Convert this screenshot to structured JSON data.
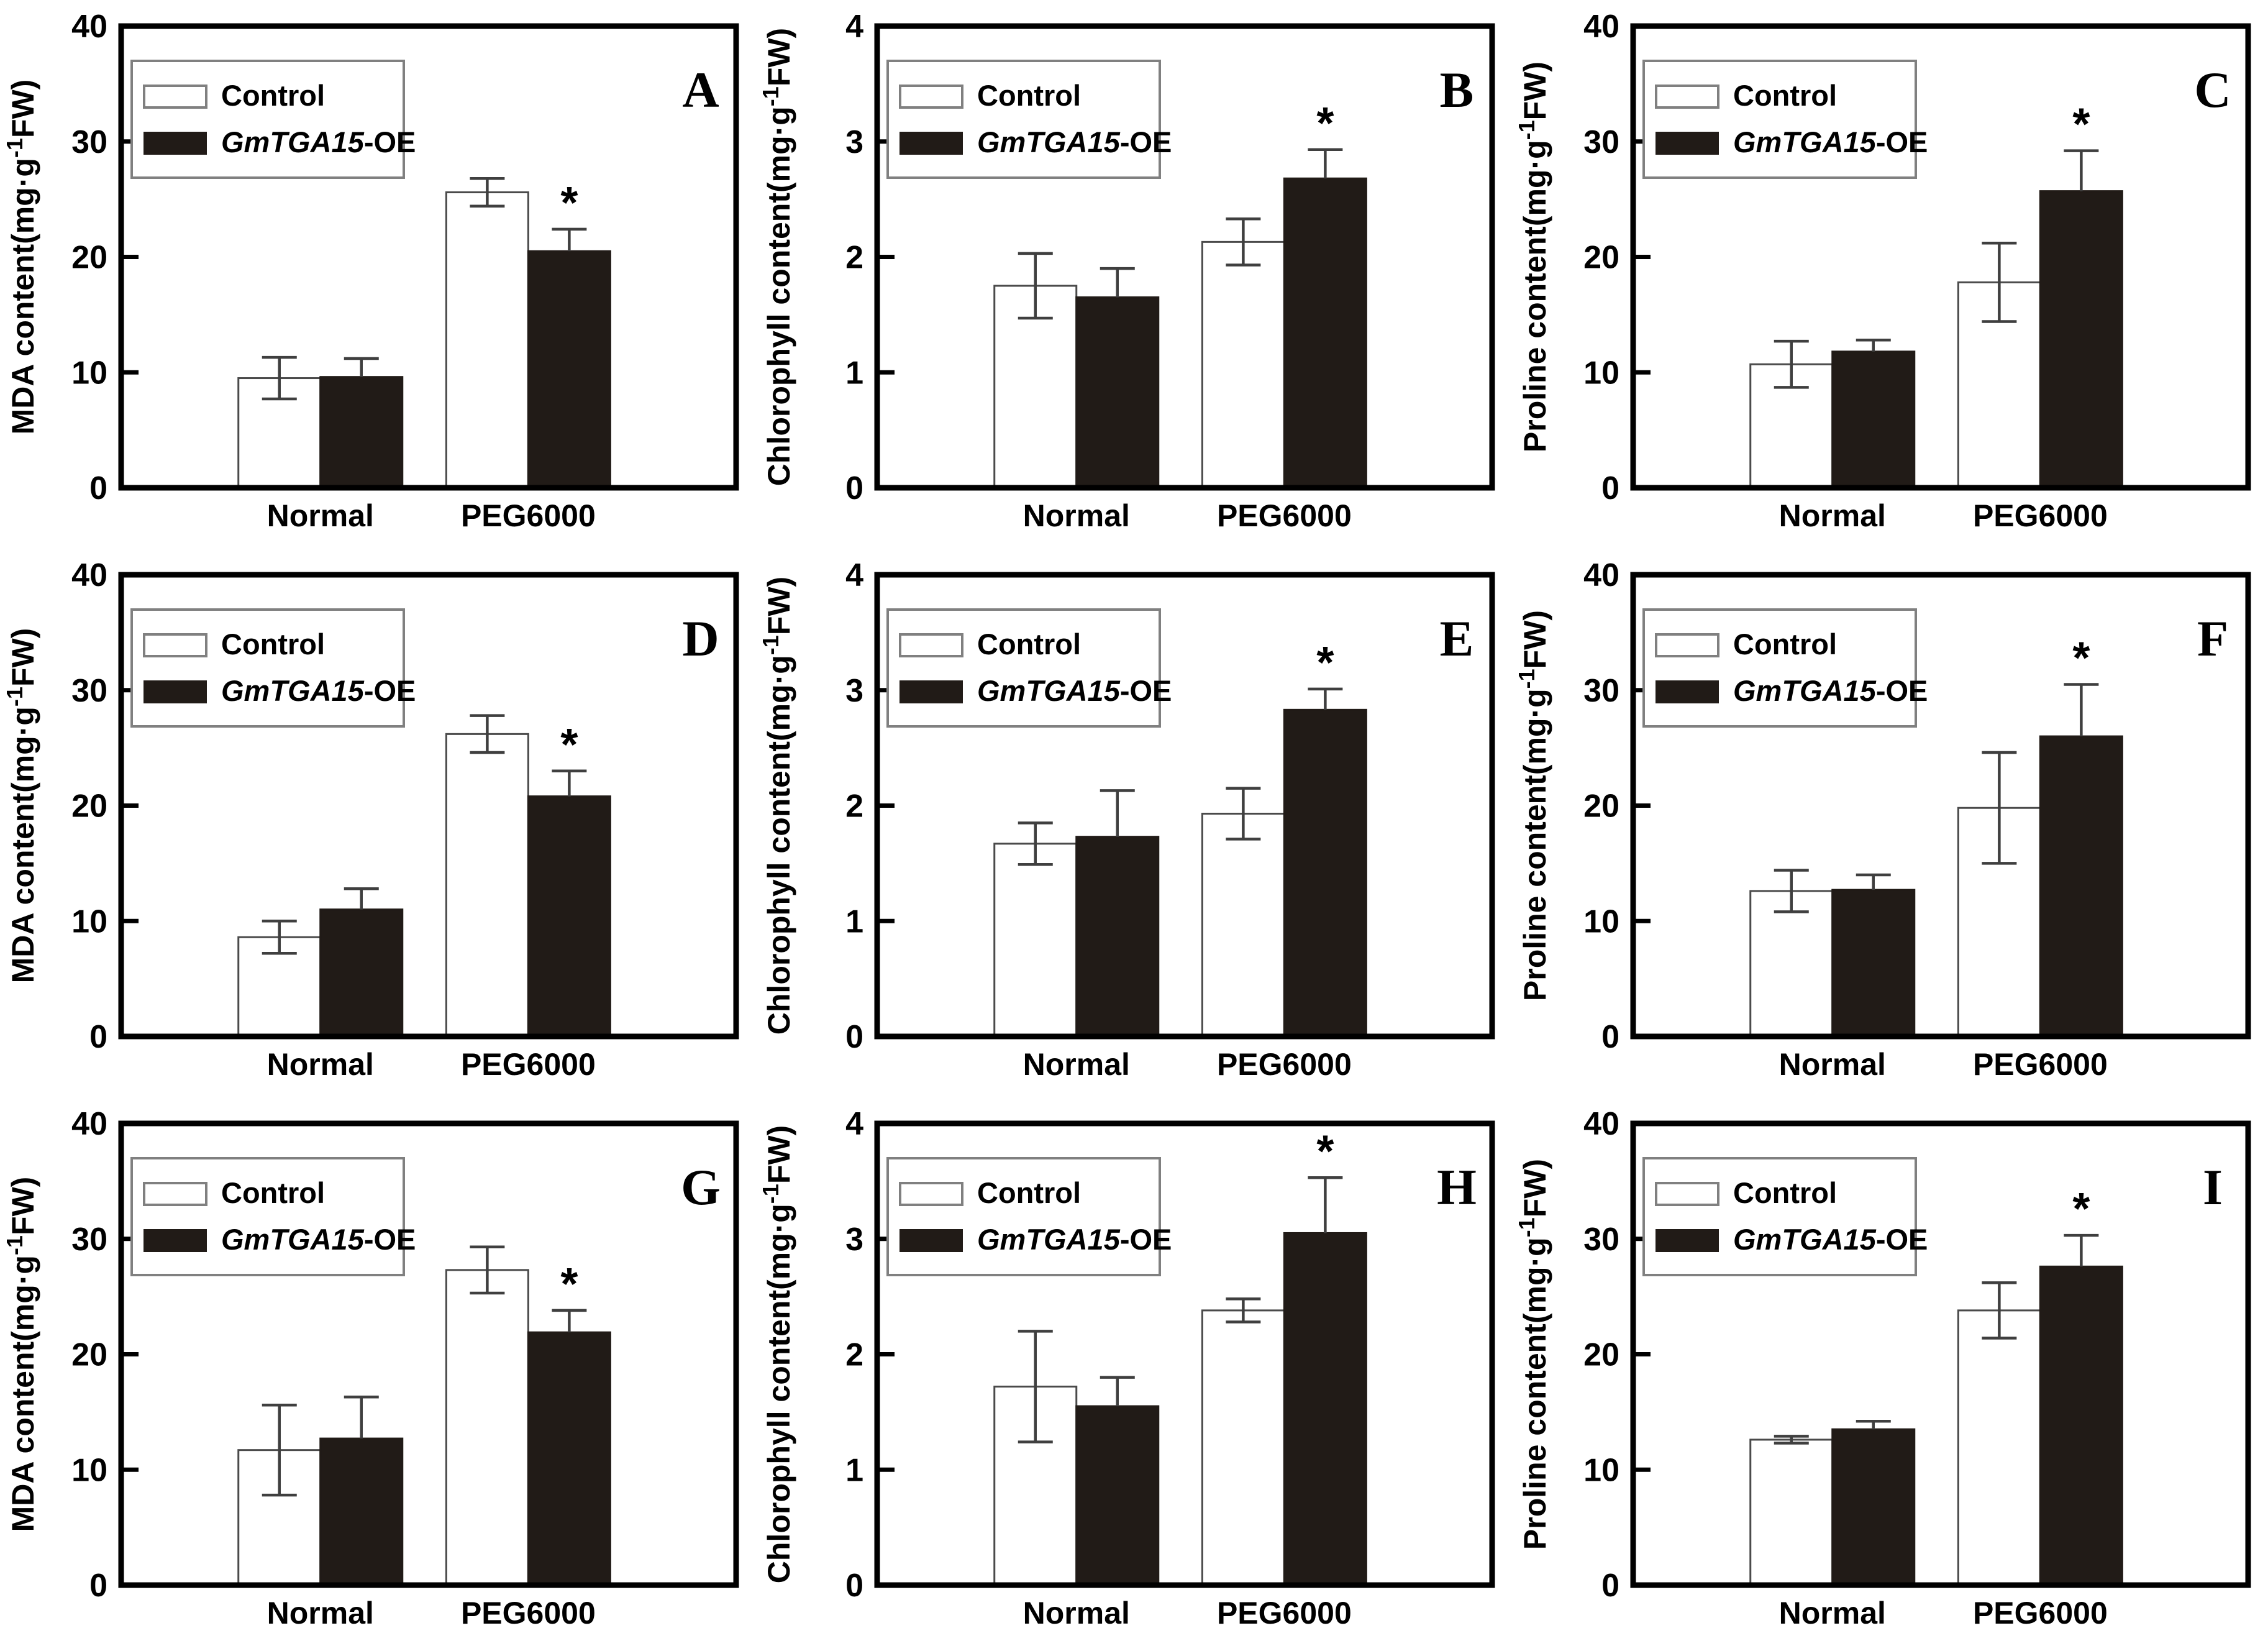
{
  "page": {
    "background": "#ffffff"
  },
  "colors": {
    "frame": "#000000",
    "tick": "#000000",
    "text": "#000000",
    "control_fill": "#ffffff",
    "control_stroke": "#4a4a4a",
    "oe_fill": "#211b17",
    "error_bar": "#3f3f3f",
    "legend_border": "#808080",
    "legend_fill": "#ffffff"
  },
  "legend": {
    "control_label": "Control",
    "oe_label_italic": "GmTGA15",
    "oe_label_suffix": "-OE"
  },
  "significance_marker": "*",
  "chart_data": [
    {
      "type": "bar",
      "panel_label": "A",
      "ylabel": "MDA content(mg·g⁻¹FW)",
      "ylabel_parts": {
        "prefix": "MDA content(mg·g",
        "sup": "-1",
        "suffix": "FW)"
      },
      "ylim": [
        0,
        40
      ],
      "yticks": [
        0,
        10,
        20,
        30,
        40
      ],
      "categories": [
        "Normal",
        "PEG6000"
      ],
      "series": [
        {
          "name": "Control",
          "values": [
            9.5,
            25.6
          ],
          "errors": [
            1.8,
            1.2
          ]
        },
        {
          "name": "GmTGA15-OE",
          "values": [
            9.6,
            20.5
          ],
          "errors": [
            1.6,
            1.9
          ]
        }
      ],
      "significance": [
        {
          "category": "PEG6000",
          "series": "GmTGA15-OE",
          "marker": "*"
        }
      ]
    },
    {
      "type": "bar",
      "panel_label": "B",
      "ylabel": "Chlorophyll content(mg·g⁻¹FW)",
      "ylabel_parts": {
        "prefix": "Chlorophyll content(mg·g",
        "sup": "-1",
        "suffix": "FW)"
      },
      "ylim": [
        0,
        4
      ],
      "yticks": [
        0,
        1,
        2,
        3,
        4
      ],
      "categories": [
        "Normal",
        "PEG6000"
      ],
      "series": [
        {
          "name": "Control",
          "values": [
            1.75,
            2.13
          ],
          "errors": [
            0.28,
            0.2
          ]
        },
        {
          "name": "GmTGA15-OE",
          "values": [
            1.65,
            2.68
          ],
          "errors": [
            0.25,
            0.25
          ]
        }
      ],
      "significance": [
        {
          "category": "PEG6000",
          "series": "GmTGA15-OE",
          "marker": "*"
        }
      ]
    },
    {
      "type": "bar",
      "panel_label": "C",
      "ylabel": "Proline content(mg·g⁻¹FW)",
      "ylabel_parts": {
        "prefix": "Proline content(mg·g",
        "sup": "-1",
        "suffix": "FW)"
      },
      "ylim": [
        0,
        40
      ],
      "yticks": [
        0,
        10,
        20,
        30,
        40
      ],
      "categories": [
        "Normal",
        "PEG6000"
      ],
      "series": [
        {
          "name": "Control",
          "values": [
            10.7,
            17.8
          ],
          "errors": [
            2.0,
            3.4
          ]
        },
        {
          "name": "GmTGA15-OE",
          "values": [
            11.8,
            25.7
          ],
          "errors": [
            1.0,
            3.5
          ]
        }
      ],
      "significance": [
        {
          "category": "PEG6000",
          "series": "GmTGA15-OE",
          "marker": "*"
        }
      ]
    },
    {
      "type": "bar",
      "panel_label": "D",
      "ylabel": "MDA content(mg·g⁻¹FW)",
      "ylabel_parts": {
        "prefix": "MDA content(mg·g",
        "sup": "-1",
        "suffix": "FW)"
      },
      "ylim": [
        0,
        40
      ],
      "yticks": [
        0,
        10,
        20,
        30,
        40
      ],
      "categories": [
        "Normal",
        "PEG6000"
      ],
      "series": [
        {
          "name": "Control",
          "values": [
            8.6,
            26.2
          ],
          "errors": [
            1.4,
            1.6
          ]
        },
        {
          "name": "GmTGA15-OE",
          "values": [
            11.0,
            20.8
          ],
          "errors": [
            1.8,
            2.2
          ]
        }
      ],
      "significance": [
        {
          "category": "PEG6000",
          "series": "GmTGA15-OE",
          "marker": "*"
        }
      ]
    },
    {
      "type": "bar",
      "panel_label": "E",
      "ylabel": "Chlorophyll content(mg·g⁻¹FW)",
      "ylabel_parts": {
        "prefix": "Chlorophyll content(mg·g",
        "sup": "-1",
        "suffix": "FW)"
      },
      "ylim": [
        0,
        4
      ],
      "yticks": [
        0,
        1,
        2,
        3,
        4
      ],
      "categories": [
        "Normal",
        "PEG6000"
      ],
      "series": [
        {
          "name": "Control",
          "values": [
            1.67,
            1.93
          ],
          "errors": [
            0.18,
            0.22
          ]
        },
        {
          "name": "GmTGA15-OE",
          "values": [
            1.73,
            2.83
          ],
          "errors": [
            0.4,
            0.18
          ]
        }
      ],
      "significance": [
        {
          "category": "PEG6000",
          "series": "GmTGA15-OE",
          "marker": "*"
        }
      ]
    },
    {
      "type": "bar",
      "panel_label": "F",
      "ylabel": "Proline content(mg·g⁻¹FW)",
      "ylabel_parts": {
        "prefix": "Proline content(mg·g",
        "sup": "-1",
        "suffix": "FW)"
      },
      "ylim": [
        0,
        40
      ],
      "yticks": [
        0,
        10,
        20,
        30,
        40
      ],
      "categories": [
        "Normal",
        "PEG6000"
      ],
      "series": [
        {
          "name": "Control",
          "values": [
            12.6,
            19.8
          ],
          "errors": [
            1.8,
            4.8
          ]
        },
        {
          "name": "GmTGA15-OE",
          "values": [
            12.7,
            26.0
          ],
          "errors": [
            1.3,
            4.5
          ]
        }
      ],
      "significance": [
        {
          "category": "PEG6000",
          "series": "GmTGA15-OE",
          "marker": "*"
        }
      ]
    },
    {
      "type": "bar",
      "panel_label": "G",
      "ylabel": "MDA content(mg·g⁻¹FW)",
      "ylabel_parts": {
        "prefix": "MDA content(mg·g",
        "sup": "-1",
        "suffix": "FW)"
      },
      "ylim": [
        0,
        40
      ],
      "yticks": [
        0,
        10,
        20,
        30,
        40
      ],
      "categories": [
        "Normal",
        "PEG6000"
      ],
      "series": [
        {
          "name": "Control",
          "values": [
            11.7,
            27.3
          ],
          "errors": [
            3.9,
            2.0
          ]
        },
        {
          "name": "GmTGA15-OE",
          "values": [
            12.7,
            21.9
          ],
          "errors": [
            3.6,
            1.9
          ]
        }
      ],
      "significance": [
        {
          "category": "PEG6000",
          "series": "GmTGA15-OE",
          "marker": "*"
        }
      ]
    },
    {
      "type": "bar",
      "panel_label": "H",
      "ylabel": "Chlorophyll content(mg·g⁻¹FW)",
      "ylabel_parts": {
        "prefix": "Chlorophyll content(mg·g",
        "sup": "-1",
        "suffix": "FW)"
      },
      "ylim": [
        0,
        4
      ],
      "yticks": [
        0,
        1,
        2,
        3,
        4
      ],
      "categories": [
        "Normal",
        "PEG6000"
      ],
      "series": [
        {
          "name": "Control",
          "values": [
            1.72,
            2.38
          ],
          "errors": [
            0.48,
            0.1
          ]
        },
        {
          "name": "GmTGA15-OE",
          "values": [
            1.55,
            3.05
          ],
          "errors": [
            0.25,
            0.48
          ]
        }
      ],
      "significance": [
        {
          "category": "PEG6000",
          "series": "GmTGA15-OE",
          "marker": "*"
        }
      ]
    },
    {
      "type": "bar",
      "panel_label": "I",
      "ylabel": "Proline content(mg·g⁻¹FW)",
      "ylabel_parts": {
        "prefix": "Proline content(mg·g",
        "sup": "-1",
        "suffix": "FW)"
      },
      "ylim": [
        0,
        40
      ],
      "yticks": [
        0,
        10,
        20,
        30,
        40
      ],
      "categories": [
        "Normal",
        "PEG6000"
      ],
      "series": [
        {
          "name": "Control",
          "values": [
            12.6,
            23.8
          ],
          "errors": [
            0.3,
            2.4
          ]
        },
        {
          "name": "GmTGA15-OE",
          "values": [
            13.5,
            27.6
          ],
          "errors": [
            0.7,
            2.7
          ]
        }
      ],
      "significance": [
        {
          "category": "PEG6000",
          "series": "GmTGA15-OE",
          "marker": "*"
        }
      ]
    }
  ]
}
